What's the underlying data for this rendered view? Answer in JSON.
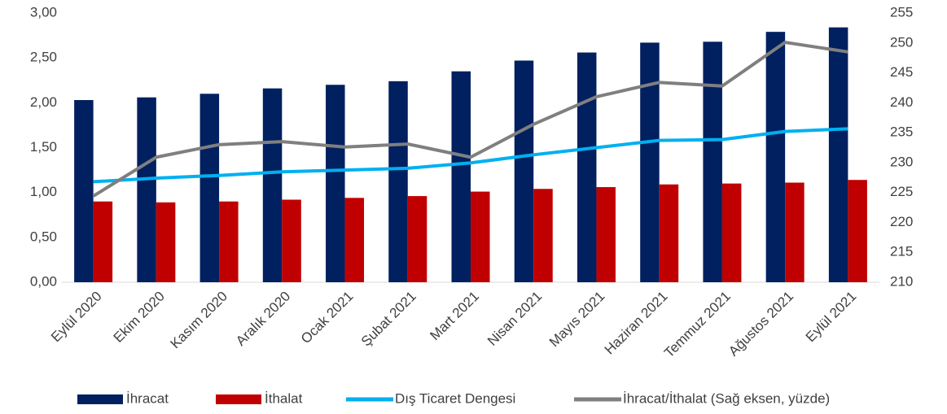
{
  "chart_data": {
    "type": "bar_line",
    "categories": [
      "Eylül 2020",
      "Ekim 2020",
      "Kasım 2020",
      "Aralık 2020",
      "Ocak 2021",
      "Şubat 2021",
      "Mart 2021",
      "Nisan 2021",
      "Mayıs 2021",
      "Haziran 2021",
      "Temmuz 2021",
      "Ağustos 2021",
      "Eylül 2021"
    ],
    "series": [
      {
        "name": "İhracat",
        "type": "bar",
        "color": "#002060",
        "values": [
          2.03,
          2.06,
          2.1,
          2.16,
          2.2,
          2.24,
          2.35,
          2.47,
          2.56,
          2.67,
          2.68,
          2.79,
          2.84
        ]
      },
      {
        "name": "İthalat",
        "type": "bar",
        "color": "#C00000",
        "values": [
          0.9,
          0.89,
          0.9,
          0.92,
          0.94,
          0.96,
          1.01,
          1.04,
          1.06,
          1.09,
          1.1,
          1.11,
          1.14
        ]
      },
      {
        "name": "Dış Ticaret Dengesi",
        "type": "line",
        "color": "#00B0F0",
        "values": [
          1.12,
          1.16,
          1.19,
          1.23,
          1.25,
          1.27,
          1.33,
          1.42,
          1.5,
          1.58,
          1.59,
          1.68,
          1.71
        ]
      },
      {
        "name": "İhracat/İthalat (Sağ eksen, yüzde)",
        "type": "line",
        "axis": "y2",
        "color": "#7F7F7F",
        "values": [
          224.4,
          230.9,
          233.0,
          233.5,
          232.6,
          233.1,
          230.9,
          236.4,
          241.0,
          243.4,
          242.8,
          250.1,
          248.5
        ]
      }
    ],
    "ylim": [
      0,
      3
    ],
    "yticks": [
      {
        "value": 0,
        "label": "0,00"
      },
      {
        "value": 0.5,
        "label": "0,50"
      },
      {
        "value": 1,
        "label": "1,00"
      },
      {
        "value": 1.5,
        "label": "1,50"
      },
      {
        "value": 2,
        "label": "2,00"
      },
      {
        "value": 2.5,
        "label": "2,50"
      },
      {
        "value": 3,
        "label": "3,00"
      }
    ],
    "y2lim": [
      210,
      255
    ],
    "y2ticks": [
      210,
      215,
      220,
      225,
      230,
      235,
      240,
      245,
      250,
      255
    ],
    "grid": false,
    "legend": "bottom"
  }
}
